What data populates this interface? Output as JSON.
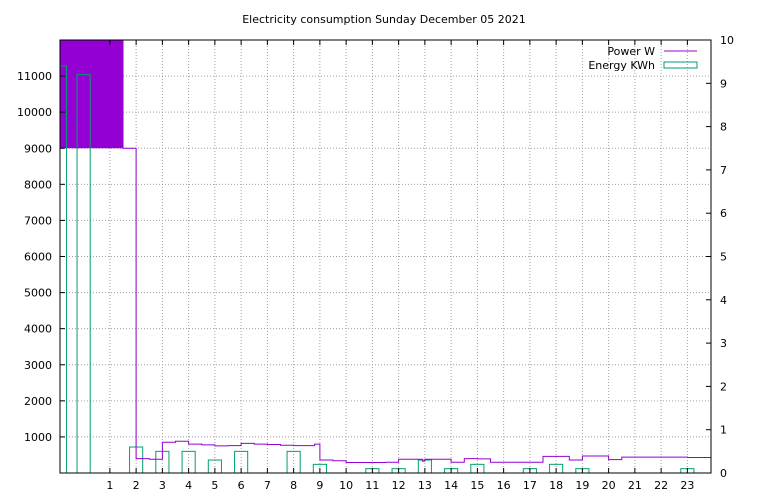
{
  "chart_data": {
    "type": "bar",
    "title": "Electricity consumption Sunday December 05 2021",
    "xlabel": "",
    "ylabel": "",
    "y2label": "",
    "grid": true,
    "legend_position": "top-right",
    "x_ticks": [
      "1",
      "2",
      "3",
      "4",
      "5",
      "6",
      "7",
      "8",
      "9",
      "10",
      "11",
      "12",
      "13",
      "14",
      "15",
      "16",
      "17",
      "18",
      "19",
      "20",
      "21",
      "22",
      "23"
    ],
    "xlim": [
      -0.9,
      23.9
    ],
    "ylim": [
      0,
      12000
    ],
    "y_ticks": [
      1000,
      2000,
      3000,
      4000,
      5000,
      6000,
      7000,
      8000,
      9000,
      10000,
      11000
    ],
    "y2lim": [
      0,
      10
    ],
    "y2_ticks": [
      0,
      1,
      2,
      3,
      4,
      5,
      6,
      7,
      8,
      9,
      10
    ],
    "colors": {
      "power": "#9400d3",
      "energy": "#009e73"
    },
    "series": [
      {
        "name": "Power W",
        "type": "step",
        "axis": "y",
        "x": [
          -0.9,
          -0.55,
          -0.5,
          0.0,
          0.5,
          1.0,
          1.5,
          2.0,
          2.5,
          3.0,
          3.5,
          4.0,
          4.5,
          5.0,
          5.5,
          6.0,
          6.5,
          7.0,
          7.5,
          8.0,
          8.5,
          8.8,
          9.0,
          9.5,
          10.0,
          10.5,
          11.0,
          11.5,
          12.0,
          12.5,
          12.9,
          13.0,
          13.5,
          14.0,
          14.5,
          15.0,
          15.5,
          16.0,
          16.5,
          17.0,
          17.5,
          18.0,
          18.5,
          19.0,
          19.5,
          20.0,
          20.5,
          21.0,
          21.5,
          22.0,
          22.5,
          23.0,
          23.3,
          23.9
        ],
        "values": [
          12000,
          12000,
          12000,
          12000,
          12000,
          12000,
          9000,
          400,
          380,
          850,
          880,
          800,
          780,
          750,
          760,
          820,
          800,
          790,
          770,
          760,
          760,
          800,
          360,
          340,
          290,
          290,
          290,
          300,
          380,
          380,
          330,
          380,
          380,
          300,
          400,
          390,
          300,
          300,
          300,
          300,
          460,
          460,
          360,
          470,
          470,
          370,
          440,
          440,
          440,
          440,
          440,
          430,
          430,
          500
        ]
      },
      {
        "name": "Energy KWh",
        "type": "bar",
        "axis": "y2",
        "x": [
          -0.9,
          0,
          1,
          2,
          3,
          4,
          5,
          6,
          7,
          8,
          9,
          10,
          11,
          12,
          13,
          14,
          15,
          16,
          17,
          18,
          19,
          20,
          21,
          22,
          23
        ],
        "values": [
          9.4,
          9.2,
          0,
          0.6,
          0.5,
          0.5,
          0.3,
          0.5,
          0,
          0.5,
          0.2,
          0,
          0.1,
          0.1,
          0.3,
          0.1,
          0.2,
          0,
          0.1,
          0.2,
          0.1,
          0,
          0,
          0,
          0.1
        ]
      }
    ]
  }
}
